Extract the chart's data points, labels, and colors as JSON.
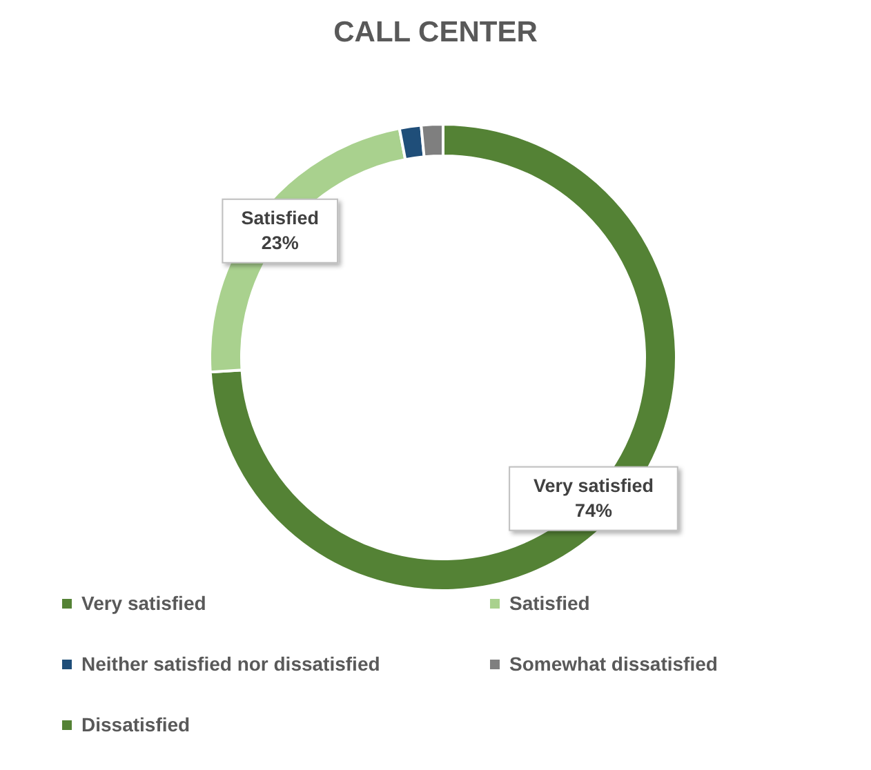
{
  "chart_data": {
    "type": "donut",
    "title": "CALL CENTER",
    "categories": [
      "Very satisfied",
      "Satisfied",
      "Neither satisfied nor dissatisfied",
      "Somewhat dissatisfied",
      "Dissatisfied"
    ],
    "values": [
      74,
      23,
      1.5,
      1.5,
      0
    ],
    "colors": [
      "#548235",
      "#a9d18e",
      "#1f4e79",
      "#7f7f7f",
      "#548235"
    ],
    "value_labels": [
      "74%",
      "23%",
      null,
      null,
      null
    ],
    "legend": "bottom"
  }
}
